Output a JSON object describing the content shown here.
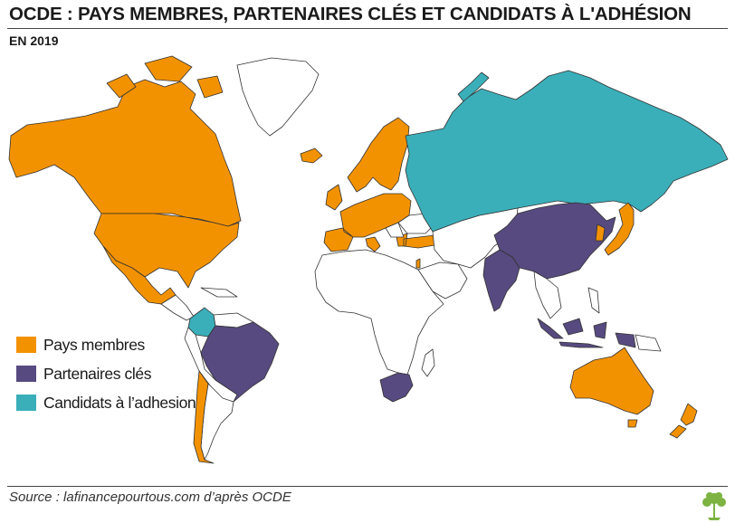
{
  "header": {
    "title": "OCDE : PAYS MEMBRES, PARTENAIRES CLÉS ET CANDIDATS À L'ADHÉSION",
    "subtitle": "EN 2019"
  },
  "legend": {
    "items": [
      {
        "label": "Pays membres",
        "color": "#f39200"
      },
      {
        "label": "Partenaires clés",
        "color": "#574a80"
      },
      {
        "label": "Candidats à l’adhesion",
        "color": "#3aafb9"
      }
    ]
  },
  "colors": {
    "member": "#f39200",
    "partner": "#574a80",
    "candidate": "#3aafb9",
    "other_land": "#ffffff",
    "border": "#333333"
  },
  "footer": {
    "source": "Source : lafinancepourtous.com d’après OCDE",
    "logo_icon": "tree-logo-icon"
  }
}
